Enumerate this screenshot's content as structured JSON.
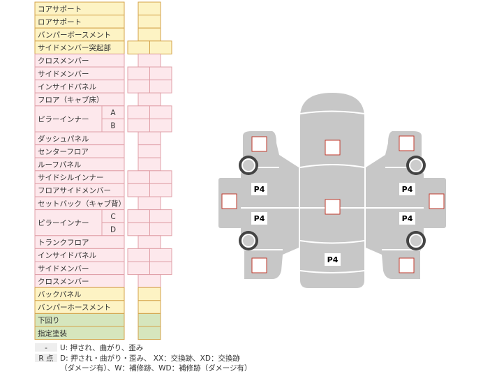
{
  "table": {
    "rows": [
      {
        "label": "コアサポート",
        "fill": "#fdf3c4",
        "boxes": 1
      },
      {
        "label": "ロアサポート",
        "fill": "#fdf3c4",
        "boxes": 1
      },
      {
        "label": "バンパーボースメント",
        "fill": "#fdf3c4",
        "boxes": 1
      },
      {
        "label": "サイドメンバー突起部",
        "fill": "#fdf3c4",
        "boxes": 2
      },
      {
        "label": "クロスメンバー",
        "fill": "#fde8ec",
        "boxes": 1
      },
      {
        "label": "サイドメンバー",
        "fill": "#fde8ec",
        "boxes": 2
      },
      {
        "label": "インサイドパネル",
        "fill": "#fde8ec",
        "boxes": 2
      },
      {
        "label": "フロア（キャブ床）",
        "fill": "#fde8ec",
        "boxes": 1
      },
      {
        "label": "ピラーインナー",
        "subs": [
          "A",
          "B"
        ],
        "fill": "#fde8ec",
        "boxes": 2
      },
      {
        "label": "ダッシュパネル",
        "fill": "#fde8ec",
        "boxes": 1
      },
      {
        "label": "センターフロア",
        "fill": "#fde8ec",
        "boxes": 1
      },
      {
        "label": "ルーフパネル",
        "fill": "#fde8ec",
        "boxes": 1
      },
      {
        "label": "サイドシルインナー",
        "fill": "#fde8ec",
        "boxes": 2
      },
      {
        "label": "フロアサイドメンバー",
        "fill": "#fde8ec",
        "boxes": 2
      },
      {
        "label": "セットバック（キャブ背）",
        "fill": "#fde8ec",
        "boxes": 1
      },
      {
        "label": "ピラーインナー",
        "subs": [
          "C",
          "D"
        ],
        "fill": "#fde8ec",
        "boxes": 2
      },
      {
        "label": "トランクフロア",
        "fill": "#fde8ec",
        "boxes": 1
      },
      {
        "label": "インサイドパネル",
        "fill": "#fde8ec",
        "boxes": 2
      },
      {
        "label": "サイドメンバー",
        "fill": "#fde8ec",
        "boxes": 2
      },
      {
        "label": "クロスメンバー",
        "fill": "#fde8ec",
        "boxes": 1
      },
      {
        "label": "バックパネル",
        "fill": "#fdf3c4",
        "boxes": 1
      },
      {
        "label": "バンパーホースメント",
        "fill": "#fdf3c4",
        "boxes": 1
      },
      {
        "label": "下回り",
        "fill": "#d6e6bd",
        "boxes": 1
      },
      {
        "label": "指定塗装",
        "fill": "#d6e6bd",
        "boxes": 1
      }
    ]
  },
  "legend": [
    {
      "key": "-",
      "text": [
        "U: 押され、曲がり、歪み"
      ]
    },
    {
      "key": "R 点",
      "text": [
        "D: 押され・曲がり・歪み、 XX：交換跡、XD：交換跡",
        "（ダメージ有）、W：補修跡、WD：補修跡（ダメージ有）"
      ]
    }
  ],
  "diagram": {
    "labels": [
      "P4",
      "P4",
      "P4",
      "P4",
      "P4"
    ]
  }
}
